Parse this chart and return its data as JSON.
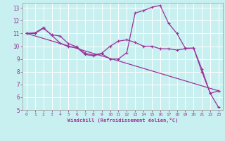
{
  "xlabel": "Windchill (Refroidissement éolien,°C)",
  "bg_color": "#c8f0f0",
  "line_color": "#993399",
  "grid_color": "#ffffff",
  "xlim": [
    -0.5,
    23.5
  ],
  "ylim": [
    5,
    13.4
  ],
  "yticks": [
    5,
    6,
    7,
    8,
    9,
    10,
    11,
    12,
    13
  ],
  "xticks": [
    0,
    1,
    2,
    3,
    4,
    5,
    6,
    7,
    8,
    9,
    10,
    11,
    12,
    13,
    14,
    15,
    16,
    17,
    18,
    19,
    20,
    21,
    22,
    23
  ],
  "line1_x": [
    0,
    1,
    2,
    3,
    4,
    5,
    6,
    7,
    8,
    9,
    10,
    11,
    12,
    13,
    14,
    15,
    16,
    17,
    18,
    19,
    20,
    21,
    22,
    23
  ],
  "line1_y": [
    11.0,
    11.0,
    11.4,
    10.9,
    10.8,
    10.2,
    9.95,
    9.45,
    9.3,
    9.45,
    10.0,
    10.4,
    10.5,
    10.3,
    10.0,
    10.0,
    9.8,
    9.8,
    9.7,
    9.8,
    9.85,
    8.0,
    6.3,
    6.5
  ],
  "line2_x": [
    0,
    1,
    2,
    3,
    4,
    5,
    6,
    7,
    8,
    9,
    10,
    11,
    12,
    13,
    14,
    15,
    16,
    17,
    18,
    19,
    20,
    21,
    22,
    23
  ],
  "line2_y": [
    11.0,
    11.05,
    11.45,
    10.85,
    10.25,
    9.95,
    9.9,
    9.35,
    9.25,
    9.4,
    9.0,
    9.0,
    9.5,
    12.6,
    12.8,
    13.05,
    13.2,
    11.8,
    11.0,
    9.85,
    9.85,
    8.2,
    6.3,
    5.2
  ],
  "line3_x": [
    0,
    23
  ],
  "line3_y": [
    11.0,
    6.5
  ]
}
